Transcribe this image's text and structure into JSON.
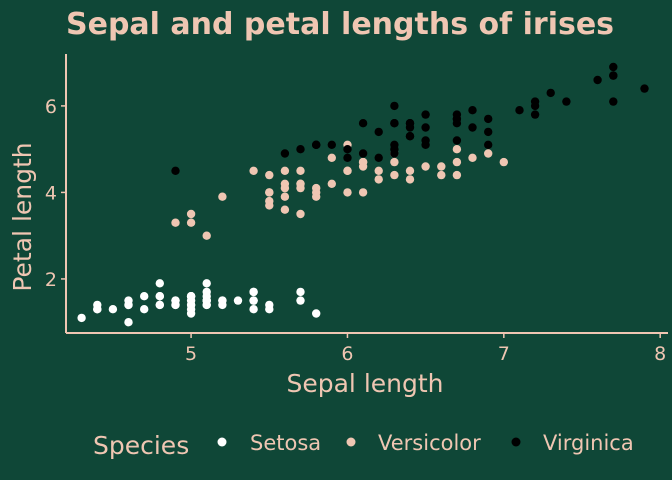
{
  "colors": {
    "background": "#0f4737",
    "text": "#efc6b2",
    "axis": "#efc6b2",
    "setosa": "#ffffff",
    "versicolor": "#efc6b2",
    "virginica": "#000000"
  },
  "legend": {
    "title": "Species",
    "position": "bottom",
    "items": [
      "Setosa",
      "Versicolor",
      "Virginica"
    ]
  },
  "chart_data": {
    "type": "scatter",
    "title": "Sepal and petal lengths of irises",
    "xlabel": "Sepal length",
    "ylabel": "Petal length",
    "xlim": [
      4.2,
      8.05
    ],
    "ylim": [
      0.75,
      7.2
    ],
    "xticks": [
      5,
      6,
      7,
      8
    ],
    "yticks": [
      2,
      4,
      6
    ],
    "grid": false,
    "series": [
      {
        "name": "Setosa",
        "color": "#ffffff",
        "points": [
          [
            5.1,
            1.4
          ],
          [
            4.9,
            1.4
          ],
          [
            4.7,
            1.3
          ],
          [
            4.6,
            1.5
          ],
          [
            5.0,
            1.4
          ],
          [
            5.4,
            1.7
          ],
          [
            4.6,
            1.4
          ],
          [
            5.0,
            1.5
          ],
          [
            4.4,
            1.4
          ],
          [
            4.9,
            1.5
          ],
          [
            5.4,
            1.5
          ],
          [
            4.8,
            1.6
          ],
          [
            4.8,
            1.4
          ],
          [
            4.3,
            1.1
          ],
          [
            5.8,
            1.2
          ],
          [
            5.7,
            1.5
          ],
          [
            5.4,
            1.3
          ],
          [
            5.1,
            1.4
          ],
          [
            5.7,
            1.7
          ],
          [
            5.1,
            1.5
          ],
          [
            5.4,
            1.7
          ],
          [
            5.1,
            1.5
          ],
          [
            4.6,
            1.0
          ],
          [
            5.1,
            1.7
          ],
          [
            4.8,
            1.9
          ],
          [
            5.0,
            1.6
          ],
          [
            5.0,
            1.6
          ],
          [
            5.2,
            1.5
          ],
          [
            5.2,
            1.4
          ],
          [
            4.7,
            1.6
          ],
          [
            4.8,
            1.6
          ],
          [
            5.4,
            1.5
          ],
          [
            5.2,
            1.5
          ],
          [
            5.5,
            1.4
          ],
          [
            4.9,
            1.5
          ],
          [
            5.0,
            1.2
          ],
          [
            5.5,
            1.3
          ],
          [
            4.9,
            1.4
          ],
          [
            4.4,
            1.3
          ],
          [
            5.1,
            1.5
          ],
          [
            5.0,
            1.3
          ],
          [
            4.5,
            1.3
          ],
          [
            4.4,
            1.3
          ],
          [
            5.0,
            1.6
          ],
          [
            5.1,
            1.9
          ],
          [
            4.8,
            1.4
          ],
          [
            5.1,
            1.6
          ],
          [
            4.6,
            1.4
          ],
          [
            5.3,
            1.5
          ],
          [
            5.0,
            1.4
          ]
        ]
      },
      {
        "name": "Versicolor",
        "color": "#efc6b2",
        "points": [
          [
            7.0,
            4.7
          ],
          [
            6.4,
            4.5
          ],
          [
            6.9,
            4.9
          ],
          [
            5.5,
            4.0
          ],
          [
            6.5,
            4.6
          ],
          [
            5.7,
            4.5
          ],
          [
            6.3,
            4.7
          ],
          [
            4.9,
            3.3
          ],
          [
            6.6,
            4.6
          ],
          [
            5.2,
            3.9
          ],
          [
            5.0,
            3.5
          ],
          [
            5.9,
            4.2
          ],
          [
            6.0,
            4.0
          ],
          [
            6.1,
            4.7
          ],
          [
            5.6,
            3.6
          ],
          [
            6.7,
            4.4
          ],
          [
            5.6,
            4.5
          ],
          [
            5.8,
            4.1
          ],
          [
            6.2,
            4.5
          ],
          [
            5.6,
            3.9
          ],
          [
            5.9,
            4.8
          ],
          [
            6.1,
            4.0
          ],
          [
            6.3,
            4.9
          ],
          [
            6.1,
            4.7
          ],
          [
            6.4,
            4.3
          ],
          [
            6.6,
            4.4
          ],
          [
            6.8,
            4.8
          ],
          [
            6.7,
            5.0
          ],
          [
            6.0,
            4.5
          ],
          [
            5.7,
            3.5
          ],
          [
            5.5,
            3.8
          ],
          [
            5.5,
            3.7
          ],
          [
            5.8,
            3.9
          ],
          [
            6.0,
            5.1
          ],
          [
            5.4,
            4.5
          ],
          [
            6.0,
            4.5
          ],
          [
            6.7,
            4.7
          ],
          [
            6.3,
            4.4
          ],
          [
            5.6,
            4.1
          ],
          [
            5.5,
            4.0
          ],
          [
            5.5,
            4.4
          ],
          [
            6.1,
            4.6
          ],
          [
            5.8,
            4.0
          ],
          [
            5.0,
            3.3
          ],
          [
            5.6,
            4.2
          ],
          [
            5.7,
            4.2
          ],
          [
            5.7,
            4.2
          ],
          [
            6.2,
            4.3
          ],
          [
            5.1,
            3.0
          ],
          [
            5.7,
            4.1
          ]
        ]
      },
      {
        "name": "Virginica",
        "color": "#000000",
        "points": [
          [
            6.3,
            6.0
          ],
          [
            5.8,
            5.1
          ],
          [
            7.1,
            5.9
          ],
          [
            6.3,
            5.6
          ],
          [
            6.5,
            5.8
          ],
          [
            7.6,
            6.6
          ],
          [
            4.9,
            4.5
          ],
          [
            7.3,
            6.3
          ],
          [
            6.7,
            5.8
          ],
          [
            7.2,
            6.1
          ],
          [
            6.5,
            5.1
          ],
          [
            6.4,
            5.3
          ],
          [
            6.8,
            5.5
          ],
          [
            5.7,
            5.0
          ],
          [
            5.8,
            5.1
          ],
          [
            6.4,
            5.3
          ],
          [
            6.5,
            5.5
          ],
          [
            7.7,
            6.7
          ],
          [
            7.7,
            6.9
          ],
          [
            6.0,
            5.0
          ],
          [
            6.9,
            5.7
          ],
          [
            5.6,
            4.9
          ],
          [
            7.7,
            6.7
          ],
          [
            6.3,
            4.9
          ],
          [
            6.7,
            5.7
          ],
          [
            7.2,
            6.0
          ],
          [
            6.2,
            4.8
          ],
          [
            6.1,
            4.9
          ],
          [
            6.4,
            5.6
          ],
          [
            7.2,
            5.8
          ],
          [
            7.4,
            6.1
          ],
          [
            7.9,
            6.4
          ],
          [
            6.4,
            5.6
          ],
          [
            6.3,
            5.1
          ],
          [
            6.1,
            5.6
          ],
          [
            7.7,
            6.1
          ],
          [
            6.3,
            5.6
          ],
          [
            6.4,
            5.5
          ],
          [
            6.0,
            4.8
          ],
          [
            6.9,
            5.4
          ],
          [
            6.7,
            5.6
          ],
          [
            6.9,
            5.1
          ],
          [
            5.8,
            5.1
          ],
          [
            6.8,
            5.9
          ],
          [
            6.7,
            5.7
          ],
          [
            6.7,
            5.2
          ],
          [
            6.3,
            5.0
          ],
          [
            6.5,
            5.2
          ],
          [
            6.2,
            5.4
          ],
          [
            5.9,
            5.1
          ]
        ]
      }
    ]
  }
}
